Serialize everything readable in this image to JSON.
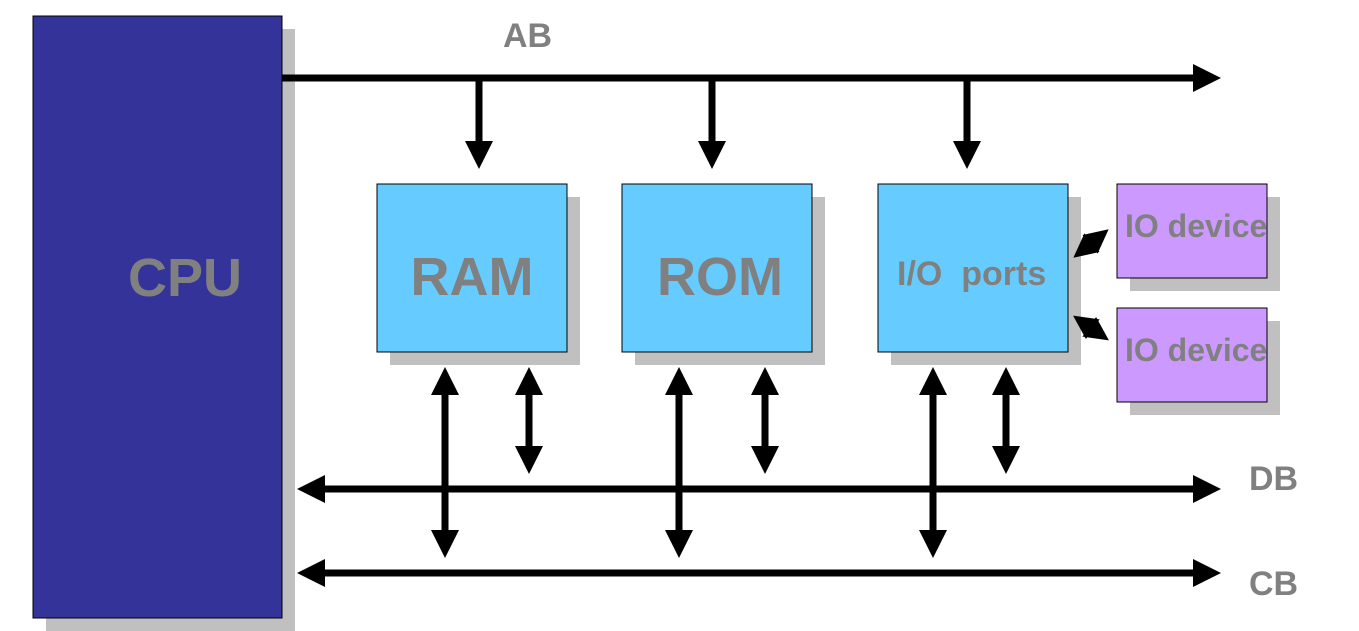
{
  "blocks": {
    "cpu": "CPU",
    "ram": "RAM",
    "rom": "ROM",
    "io_ports": "I/O  ports",
    "io_device_1": "IO device",
    "io_device_2": "IO device"
  },
  "buses": {
    "address": "AB",
    "data": "DB",
    "control": "CB"
  },
  "colors": {
    "cpu_fill": "#333399",
    "memory_fill": "#66ccff",
    "device_fill": "#cc99ff",
    "shadow": "#c0c0c0",
    "label_text": "#808080",
    "bus_line": "#000000"
  }
}
